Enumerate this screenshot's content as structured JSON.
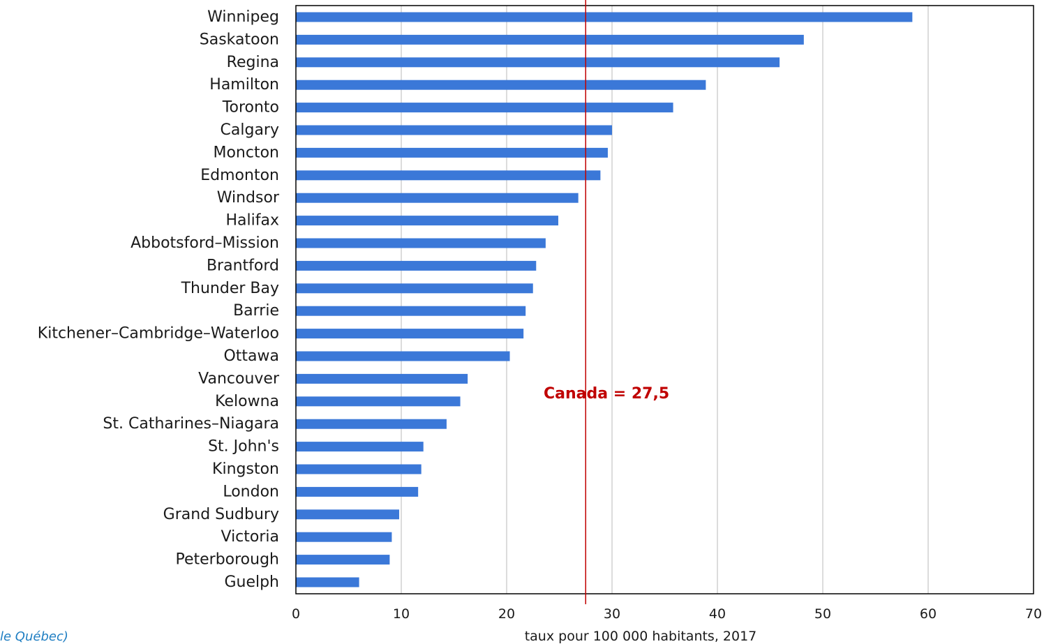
{
  "colors": {
    "bar": "#3b78d8",
    "reference": "#c00000",
    "grid": "#d0d0d0",
    "frame": "#000000",
    "source": "#1f7ec2"
  },
  "chart_data": {
    "type": "bar",
    "orientation": "horizontal",
    "categories": [
      "Winnipeg",
      "Saskatoon",
      "Regina",
      "Hamilton",
      "Toronto",
      "Calgary",
      "Moncton",
      "Edmonton",
      "Windsor",
      "Halifax",
      "Abbotsford–Mission",
      "Brantford",
      "Thunder Bay",
      "Barrie",
      "Kitchener–Cambridge–Waterloo",
      "Ottawa",
      "Vancouver",
      "Kelowna",
      "St. Catharines–Niagara",
      "St. John's",
      "Kingston",
      "London",
      "Grand Sudbury",
      "Victoria",
      "Peterborough",
      "Guelph"
    ],
    "values": [
      58.5,
      48.2,
      45.9,
      38.9,
      35.8,
      30.0,
      29.6,
      28.9,
      26.8,
      24.9,
      23.7,
      22.8,
      22.5,
      21.8,
      21.6,
      20.3,
      16.3,
      15.6,
      14.3,
      12.1,
      11.9,
      11.6,
      9.8,
      9.1,
      8.9,
      6.0
    ],
    "xlabel": "taux pour 100 000 habitants, 2017",
    "ylabel": "",
    "xlim": [
      0,
      70
    ],
    "xticks": [
      0,
      10,
      20,
      30,
      40,
      50,
      60,
      70
    ],
    "grid": "vertical",
    "legend": "none",
    "reference_line": {
      "value": 27.5,
      "label": "Canada = 27,5"
    }
  },
  "source_note": "le Québec)"
}
